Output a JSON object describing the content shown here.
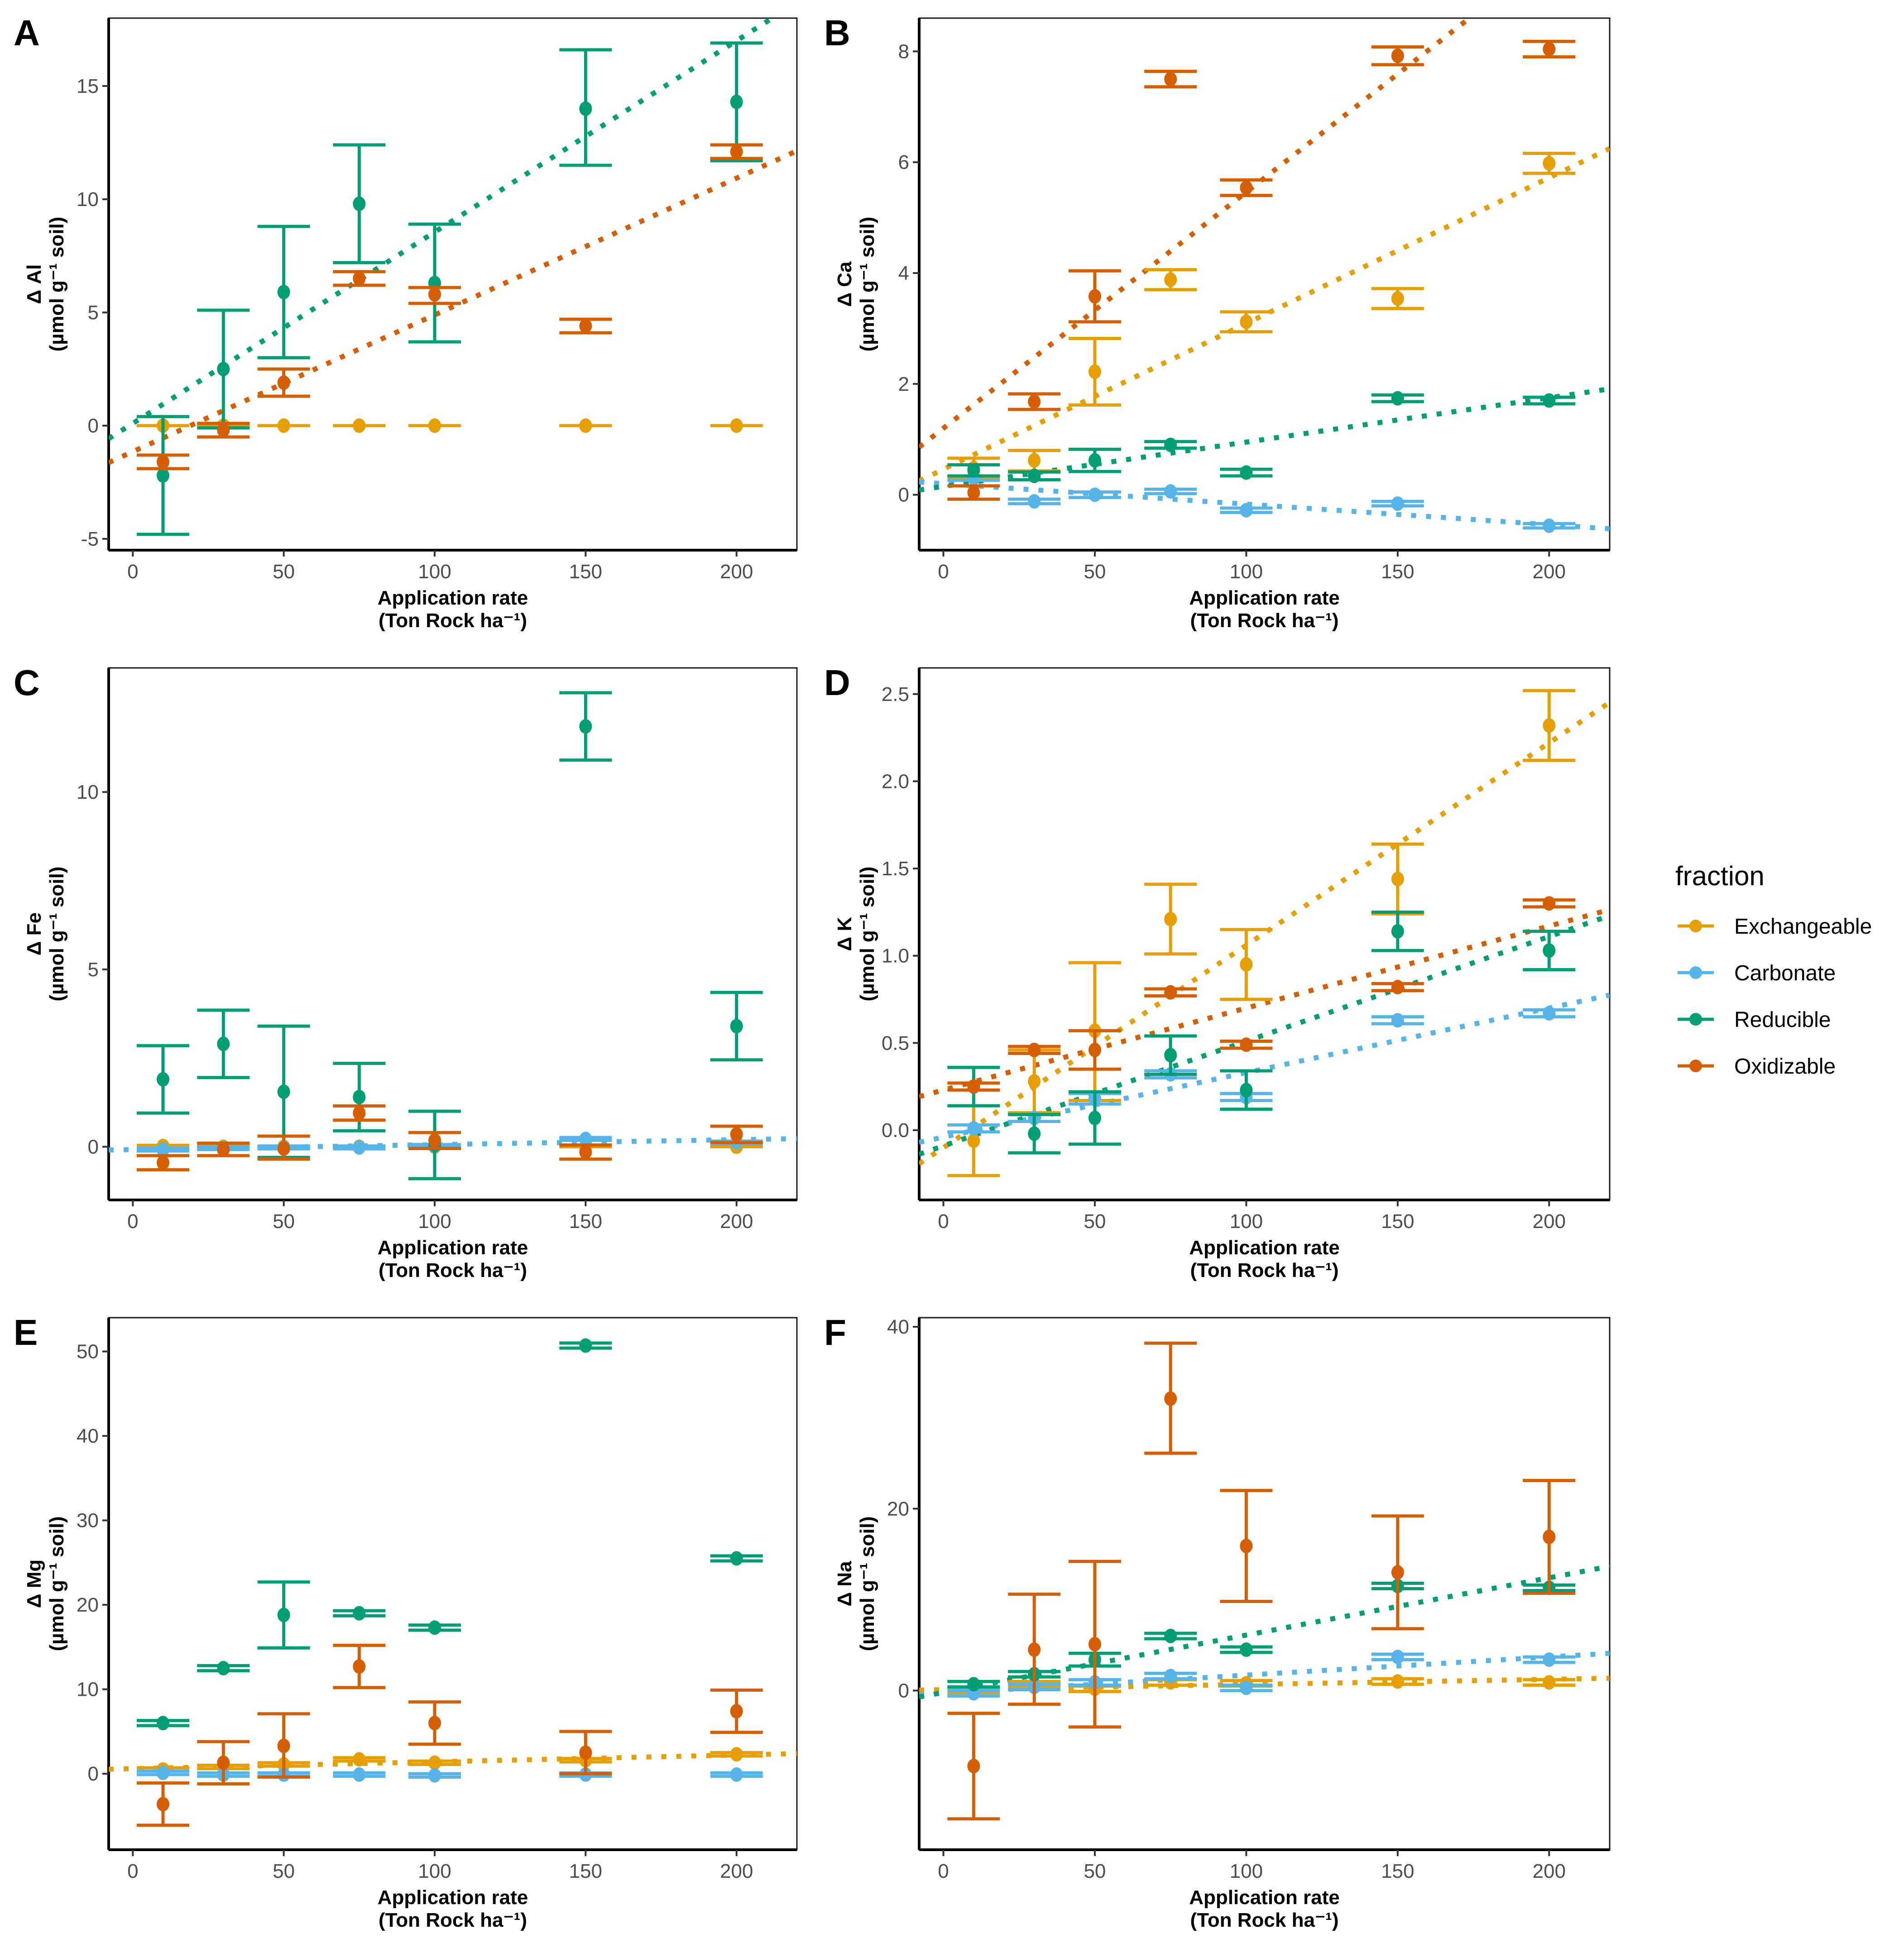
{
  "figure": {
    "legend": {
      "title": "fraction",
      "entries": [
        {
          "name": "Exchangeable",
          "color": "#E69F00"
        },
        {
          "name": "Carbonate",
          "color": "#56B4E9"
        },
        {
          "name": "Reducible",
          "color": "#009E73"
        },
        {
          "name": "Oxidizable",
          "color": "#D55E00"
        }
      ]
    }
  },
  "chart_data": [
    {
      "panel": "A",
      "type": "scatter",
      "xlabel": "Application rate",
      "xlabel2": "(Ton Rock ha⁻¹)",
      "ylabel": "Δ Al",
      "ylabel2": "(µmol g⁻¹ soil)",
      "xlim": [
        -8,
        220
      ],
      "ylim": [
        -5.5,
        18
      ],
      "xticks": [
        0,
        50,
        100,
        150,
        200
      ],
      "yticks": [
        -5,
        0,
        5,
        10,
        15
      ],
      "x": [
        10,
        30,
        50,
        75,
        100,
        150,
        200
      ],
      "series": [
        {
          "name": "Exchangeable",
          "y": [
            0,
            0,
            0,
            0,
            0,
            0,
            0
          ],
          "lo": [
            0,
            0,
            0,
            0,
            0,
            0,
            0
          ],
          "hi": [
            0,
            0,
            0,
            0,
            0,
            0,
            0
          ]
        },
        {
          "name": "Reducible",
          "y": [
            -2.2,
            2.5,
            5.9,
            9.8,
            6.3,
            14.0,
            14.3
          ],
          "lo": [
            -4.8,
            -0.1,
            3.0,
            7.2,
            3.7,
            11.5,
            11.7
          ],
          "hi": [
            0.4,
            5.1,
            8.8,
            12.4,
            8.9,
            16.6,
            16.9
          ],
          "trend": [
            0.1,
            0.0845
          ]
        },
        {
          "name": "Oxidizable",
          "y": [
            -1.6,
            -0.2,
            1.9,
            6.5,
            5.8,
            4.4,
            12.1
          ],
          "lo": [
            -1.9,
            -0.5,
            1.3,
            6.2,
            5.4,
            4.1,
            11.8
          ],
          "hi": [
            -1.3,
            0.1,
            2.5,
            6.8,
            6.1,
            4.7,
            12.4
          ],
          "trend": [
            -1.15,
            0.0604
          ]
        }
      ]
    },
    {
      "panel": "B",
      "type": "scatter",
      "xlabel": "Application rate",
      "xlabel2": "(Ton Rock ha⁻¹)",
      "ylabel": "Δ Ca",
      "ylabel2": "(µmol g⁻¹ soil)",
      "xlim": [
        -8,
        220
      ],
      "ylim": [
        -1.0,
        8.6
      ],
      "xticks": [
        0,
        50,
        100,
        150,
        200
      ],
      "yticks": [
        0,
        2,
        4,
        6,
        8
      ],
      "x": [
        10,
        30,
        50,
        75,
        100,
        150,
        200
      ],
      "series": [
        {
          "name": "Exchangeable",
          "y": [
            0.48,
            0.62,
            2.22,
            3.88,
            3.12,
            3.54,
            5.98
          ],
          "lo": [
            0.3,
            0.43,
            1.62,
            3.7,
            2.94,
            3.36,
            5.8
          ],
          "hi": [
            0.66,
            0.8,
            2.82,
            4.06,
            3.3,
            3.72,
            6.16
          ],
          "trend": [
            0.46,
            0.0263
          ]
        },
        {
          "name": "Carbonate",
          "y": [
            0.3,
            -0.12,
            0.0,
            0.06,
            -0.28,
            -0.16,
            -0.56
          ],
          "lo": [
            0.26,
            -0.16,
            -0.05,
            0.02,
            -0.32,
            -0.2,
            -0.6
          ],
          "hi": [
            0.34,
            -0.08,
            0.05,
            0.1,
            -0.24,
            -0.12,
            -0.52
          ],
          "trend": [
            0.2,
            -0.0037
          ]
        },
        {
          "name": "Reducible",
          "y": [
            0.44,
            0.34,
            0.62,
            0.9,
            0.4,
            1.74,
            1.7
          ],
          "lo": [
            0.34,
            0.27,
            0.42,
            0.84,
            0.34,
            1.68,
            1.64
          ],
          "hi": [
            0.54,
            0.41,
            0.82,
            0.96,
            0.46,
            1.8,
            1.76
          ],
          "trend": [
            0.15,
            0.008
          ]
        },
        {
          "name": "Oxidizable",
          "y": [
            0.04,
            1.68,
            3.58,
            7.5,
            5.54,
            7.92,
            8.04
          ],
          "lo": [
            -0.08,
            1.54,
            3.12,
            7.36,
            5.4,
            7.76,
            7.9
          ],
          "hi": [
            0.16,
            1.82,
            4.04,
            7.64,
            5.68,
            8.08,
            8.18
          ],
          "trend": [
            1.2,
            0.0426
          ]
        }
      ]
    },
    {
      "panel": "C",
      "type": "scatter",
      "xlabel": "Application rate",
      "xlabel2": "(Ton Rock ha⁻¹)",
      "ylabel": "Δ Fe",
      "ylabel2": "(µmol g⁻¹ soil)",
      "xlim": [
        -8,
        220
      ],
      "ylim": [
        -1.5,
        13.5
      ],
      "xticks": [
        0,
        50,
        100,
        150,
        200
      ],
      "yticks": [
        0,
        5,
        10
      ],
      "x": [
        10,
        30,
        50,
        75,
        100,
        150,
        200
      ],
      "series": [
        {
          "name": "Exchangeable",
          "y": [
            0.02,
            0.0,
            0.0,
            0.0,
            0.0,
            0.0,
            0.0
          ],
          "lo": [
            0,
            0,
            0,
            0,
            0,
            0,
            0
          ],
          "hi": [
            0.04,
            0.02,
            0.02,
            0.02,
            0.02,
            0.02,
            0.02
          ]
        },
        {
          "name": "Carbonate",
          "y": [
            -0.08,
            -0.04,
            -0.02,
            -0.02,
            0.02,
            0.22,
            0.12
          ],
          "lo": [
            -0.12,
            -0.08,
            -0.06,
            -0.06,
            -0.02,
            0.18,
            0.08
          ],
          "hi": [
            -0.04,
            0.0,
            0.02,
            0.02,
            0.06,
            0.26,
            0.16
          ],
          "trend": [
            -0.08,
            0.0014
          ]
        },
        {
          "name": "Reducible",
          "y": [
            1.9,
            2.9,
            1.55,
            1.4,
            0.05,
            11.85,
            3.4
          ],
          "lo": [
            0.95,
            1.95,
            -0.3,
            0.45,
            -0.9,
            10.9,
            2.45
          ],
          "hi": [
            2.85,
            3.85,
            3.4,
            2.35,
            1.0,
            12.8,
            4.35
          ]
        },
        {
          "name": "Oxidizable",
          "y": [
            -0.45,
            -0.08,
            -0.05,
            0.95,
            0.18,
            -0.15,
            0.35
          ],
          "lo": [
            -0.65,
            -0.25,
            -0.35,
            0.75,
            -0.05,
            -0.35,
            0.12
          ],
          "hi": [
            -0.25,
            0.1,
            0.3,
            1.15,
            0.4,
            0.05,
            0.58
          ]
        }
      ]
    },
    {
      "panel": "D",
      "type": "scatter",
      "xlabel": "Application rate",
      "xlabel2": "(Ton Rock ha⁻¹)",
      "ylabel": "Δ K",
      "ylabel2": "(µmol g⁻¹ soil)",
      "xlim": [
        -8,
        220
      ],
      "ylim": [
        -0.4,
        2.65
      ],
      "xticks": [
        0,
        50,
        100,
        150,
        200
      ],
      "yticks": [
        0.0,
        0.5,
        1.0,
        1.5,
        2.0,
        2.5
      ],
      "x": [
        10,
        30,
        50,
        75,
        100,
        150,
        200
      ],
      "series": [
        {
          "name": "Exchangeable",
          "y": [
            -0.06,
            0.28,
            0.57,
            1.21,
            0.95,
            1.44,
            2.32
          ],
          "lo": [
            -0.26,
            0.1,
            0.17,
            1.01,
            0.75,
            1.24,
            2.12
          ],
          "hi": [
            0.14,
            0.46,
            0.96,
            1.41,
            1.15,
            1.64,
            2.52
          ],
          "trend": [
            -0.1,
            0.0116
          ]
        },
        {
          "name": "Carbonate",
          "y": [
            0.01,
            0.07,
            0.18,
            0.32,
            0.19,
            0.63,
            0.67
          ],
          "lo": [
            -0.01,
            0.05,
            0.15,
            0.3,
            0.17,
            0.61,
            0.65
          ],
          "hi": [
            0.03,
            0.09,
            0.21,
            0.34,
            0.21,
            0.65,
            0.69
          ],
          "trend": [
            -0.04,
            0.0037
          ]
        },
        {
          "name": "Reducible",
          "y": [
            0.25,
            -0.02,
            0.07,
            0.43,
            0.23,
            1.14,
            1.03
          ],
          "lo": [
            0.14,
            -0.13,
            -0.08,
            0.32,
            0.12,
            1.03,
            0.92
          ],
          "hi": [
            0.36,
            0.09,
            0.22,
            0.54,
            0.34,
            1.25,
            1.14
          ],
          "trend": [
            -0.09,
            0.006
          ]
        },
        {
          "name": "Oxidizable",
          "y": [
            0.25,
            0.46,
            0.46,
            0.79,
            0.49,
            0.82,
            1.3
          ],
          "lo": [
            0.23,
            0.44,
            0.35,
            0.77,
            0.47,
            0.8,
            1.28
          ],
          "hi": [
            0.27,
            0.48,
            0.57,
            0.81,
            0.51,
            0.84,
            1.32
          ],
          "trend": [
            0.23,
            0.0047
          ]
        }
      ]
    },
    {
      "panel": "E",
      "type": "scatter",
      "xlabel": "Application rate",
      "xlabel2": "(Ton Rock ha⁻¹)",
      "ylabel": "Δ Mg",
      "ylabel2": "(µmol g⁻¹ soil)",
      "xlim": [
        -8,
        220
      ],
      "ylim": [
        -9,
        54
      ],
      "xticks": [
        0,
        50,
        100,
        150,
        200
      ],
      "yticks": [
        0,
        10,
        20,
        30,
        40,
        50
      ],
      "x": [
        10,
        30,
        50,
        75,
        100,
        150,
        200
      ],
      "series": [
        {
          "name": "Exchangeable",
          "y": [
            0.5,
            0.8,
            1.1,
            1.7,
            1.3,
            1.6,
            2.3
          ],
          "lo": [
            0.3,
            0.6,
            0.9,
            1.5,
            1.1,
            1.4,
            2.1
          ],
          "hi": [
            0.7,
            1.0,
            1.3,
            1.9,
            1.5,
            1.8,
            2.5
          ],
          "trend": [
            0.6,
            0.0081
          ]
        },
        {
          "name": "Carbonate",
          "y": [
            0.1,
            -0.1,
            -0.1,
            -0.1,
            -0.2,
            -0.1,
            -0.1
          ],
          "lo": [
            -0.1,
            -0.3,
            -0.3,
            -0.3,
            -0.4,
            -0.3,
            -0.3
          ],
          "hi": [
            0.3,
            0.1,
            0.1,
            0.1,
            0.0,
            0.1,
            0.1
          ]
        },
        {
          "name": "Reducible",
          "y": [
            6.0,
            12.5,
            18.8,
            19.0,
            17.3,
            50.7,
            25.5
          ],
          "lo": [
            5.7,
            12.2,
            14.9,
            18.7,
            17.0,
            50.4,
            25.2
          ],
          "hi": [
            6.3,
            12.8,
            22.7,
            19.3,
            17.6,
            51.0,
            25.8
          ]
        },
        {
          "name": "Oxidizable",
          "y": [
            -3.6,
            1.3,
            3.3,
            12.7,
            6.0,
            2.5,
            7.4
          ],
          "lo": [
            -6.1,
            -1.2,
            -0.4,
            10.2,
            3.5,
            0.0,
            4.9
          ],
          "hi": [
            -1.1,
            3.8,
            7.1,
            15.2,
            8.5,
            5.0,
            9.9
          ]
        }
      ]
    },
    {
      "panel": "F",
      "type": "scatter",
      "xlabel": "Application rate",
      "xlabel2": "(Ton Rock ha⁻¹)",
      "ylabel": "Δ Na",
      "ylabel2": "(µmol g⁻¹ soil)",
      "xlim": [
        -8,
        220
      ],
      "ylim": [
        -17.5,
        41
      ],
      "xticks": [
        0,
        50,
        100,
        150,
        200
      ],
      "yticks": [
        0,
        20,
        40
      ],
      "x": [
        10,
        30,
        50,
        75,
        100,
        150,
        200
      ],
      "series": [
        {
          "name": "Exchangeable",
          "y": [
            0.0,
            0.7,
            0.2,
            0.9,
            0.8,
            1.0,
            0.9
          ],
          "lo": [
            -0.3,
            0.4,
            -0.1,
            0.6,
            0.5,
            0.7,
            0.6
          ],
          "hi": [
            0.3,
            1.0,
            0.5,
            1.2,
            1.1,
            1.3,
            1.2
          ],
          "trend": [
            0.1,
            0.0057
          ]
        },
        {
          "name": "Carbonate",
          "y": [
            -0.3,
            0.4,
            0.9,
            1.6,
            0.3,
            3.7,
            3.4
          ],
          "lo": [
            -0.6,
            0.1,
            0.6,
            1.3,
            0.0,
            3.4,
            3.1
          ],
          "hi": [
            0.0,
            0.7,
            1.2,
            1.9,
            0.6,
            4.0,
            3.7
          ],
          "trend": [
            -0.3,
            0.02
          ]
        },
        {
          "name": "Reducible",
          "y": [
            0.7,
            1.8,
            3.4,
            6.0,
            4.5,
            11.5,
            11.3
          ],
          "lo": [
            0.4,
            1.5,
            2.7,
            5.7,
            4.2,
            11.2,
            11.0
          ],
          "hi": [
            1.0,
            2.1,
            4.1,
            6.3,
            4.8,
            11.8,
            11.6
          ],
          "trend": [
            -0.2,
            0.063
          ]
        },
        {
          "name": "Oxidizable",
          "y": [
            -8.3,
            4.5,
            5.1,
            32.1,
            15.9,
            13.0,
            16.9
          ],
          "lo": [
            -14.1,
            -1.5,
            -4.0,
            26.1,
            9.8,
            6.8,
            10.7
          ],
          "hi": [
            -2.5,
            10.6,
            14.2,
            38.2,
            22.0,
            19.2,
            23.1
          ]
        }
      ]
    }
  ]
}
